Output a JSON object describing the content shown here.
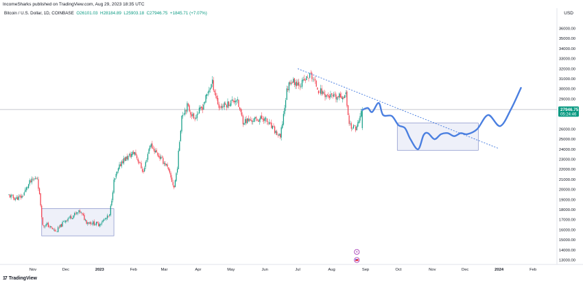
{
  "header": {
    "publisher_line": "IncomeSharks published on TradingView.com, Aug 29, 2023 18:35 UTC"
  },
  "legend": {
    "symbol": "Bitcoin / U.S. Dollar, 1D, COINBASE",
    "open": "O26101.03",
    "high": "H28184.89",
    "low": "L25903.18",
    "close": "C27946.75",
    "change": "+1845.71 (+7.07%)"
  },
  "currency": "USD",
  "price_badge": {
    "price": "27946.75",
    "countdown": "05:24:46",
    "color": "#089981"
  },
  "brand": {
    "name": "TradingView",
    "logo_text": "17"
  },
  "colors": {
    "up": "#089981",
    "down": "#f23645",
    "projection": "#4a7fe0",
    "trendline": "#4a7fe0",
    "box_fill": "#e8ebf7",
    "box_stroke": "#7f8bc7"
  },
  "icons": [
    "lightning-event-icon",
    "us-flag-event-icon"
  ],
  "chart_data": {
    "type": "candlestick",
    "y_axis": {
      "min": 13000,
      "max": 36000,
      "step": 1000,
      "tick_labels": [
        "36000.00",
        "35000.00",
        "34000.00",
        "33000.00",
        "32000.00",
        "31000.00",
        "30000.00",
        "29000.00",
        "28000.00",
        "27000.00",
        "26000.00",
        "25000.00",
        "24000.00",
        "23000.00",
        "22000.00",
        "21000.00",
        "20000.00",
        "19000.00",
        "18000.00",
        "17000.00",
        "16000.00",
        "15000.00",
        "14000.00",
        "13000.00"
      ],
      "hidden_ticks": [
        "27000.00"
      ]
    },
    "x_axis": {
      "tick_labels": [
        {
          "label": "Nov",
          "date": "2022-11-01"
        },
        {
          "label": "Dec",
          "date": "2022-12-01"
        },
        {
          "label": "2023",
          "date": "2023-01-01"
        },
        {
          "label": "Feb",
          "date": "2023-02-01"
        },
        {
          "label": "Mar",
          "date": "2023-03-01"
        },
        {
          "label": "Apr",
          "date": "2023-04-01"
        },
        {
          "label": "May",
          "date": "2023-05-01"
        },
        {
          "label": "Jun",
          "date": "2023-06-01"
        },
        {
          "label": "Jul",
          "date": "2023-07-01"
        },
        {
          "label": "Aug",
          "date": "2023-08-01"
        },
        {
          "label": "Sep",
          "date": "2023-09-01"
        },
        {
          "label": "Oct",
          "date": "2023-10-01"
        },
        {
          "label": "Nov",
          "date": "2023-11-01"
        },
        {
          "label": "Dec",
          "date": "2023-12-01"
        },
        {
          "label": "2024",
          "date": "2024-01-01"
        },
        {
          "label": "Feb",
          "date": "2024-02-01"
        }
      ]
    },
    "current_price_line": 27946.75,
    "path_keypoints": [
      [
        "2022-10-10",
        19400
      ],
      [
        "2022-10-16",
        19100
      ],
      [
        "2022-10-22",
        19300
      ],
      [
        "2022-10-29",
        20700
      ],
      [
        "2022-11-05",
        21200
      ],
      [
        "2022-11-08",
        18500
      ],
      [
        "2022-11-10",
        16400
      ],
      [
        "2022-11-14",
        16500
      ],
      [
        "2022-11-22",
        15800
      ],
      [
        "2022-12-01",
        17000
      ],
      [
        "2022-12-14",
        17800
      ],
      [
        "2022-12-20",
        16800
      ],
      [
        "2022-12-31",
        16550
      ],
      [
        "2023-01-10",
        17400
      ],
      [
        "2023-01-14",
        20800
      ],
      [
        "2023-01-21",
        22800
      ],
      [
        "2023-02-02",
        23700
      ],
      [
        "2023-02-10",
        21700
      ],
      [
        "2023-02-16",
        24500
      ],
      [
        "2023-02-25",
        23200
      ],
      [
        "2023-03-03",
        22400
      ],
      [
        "2023-03-10",
        20200
      ],
      [
        "2023-03-13",
        22300
      ],
      [
        "2023-03-17",
        27400
      ],
      [
        "2023-03-22",
        28300
      ],
      [
        "2023-03-28",
        27100
      ],
      [
        "2023-04-05",
        28200
      ],
      [
        "2023-04-11",
        30000
      ],
      [
        "2023-04-14",
        30600
      ],
      [
        "2023-04-20",
        28200
      ],
      [
        "2023-04-26",
        28400
      ],
      [
        "2023-05-06",
        29000
      ],
      [
        "2023-05-12",
        26800
      ],
      [
        "2023-05-22",
        26900
      ],
      [
        "2023-05-31",
        27100
      ],
      [
        "2023-06-10",
        25800
      ],
      [
        "2023-06-15",
        25100
      ],
      [
        "2023-06-21",
        29800
      ],
      [
        "2023-06-24",
        30800
      ],
      [
        "2023-07-04",
        30500
      ],
      [
        "2023-07-13",
        31400
      ],
      [
        "2023-07-20",
        29900
      ],
      [
        "2023-07-28",
        29300
      ],
      [
        "2023-08-05",
        29100
      ],
      [
        "2023-08-14",
        29400
      ],
      [
        "2023-08-17",
        26600
      ],
      [
        "2023-08-20",
        26100
      ],
      [
        "2023-08-24",
        26200
      ],
      [
        "2023-08-29",
        27950
      ]
    ],
    "ohlc": [
      {
        "date": "2023-08-29",
        "open": 26101.03,
        "high": 28184.89,
        "low": 25903.18,
        "close": 27946.75
      }
    ],
    "projection_path": [
      [
        "2023-08-29",
        27900
      ],
      [
        "2023-09-03",
        28100
      ],
      [
        "2023-09-07",
        27700
      ],
      [
        "2023-09-13",
        28600
      ],
      [
        "2023-09-17",
        27400
      ],
      [
        "2023-09-25",
        27300
      ],
      [
        "2023-10-01",
        26400
      ],
      [
        "2023-10-07",
        26100
      ],
      [
        "2023-10-12",
        25000
      ],
      [
        "2023-10-19",
        24000
      ],
      [
        "2023-10-24",
        25400
      ],
      [
        "2023-10-28",
        25600
      ],
      [
        "2023-11-03",
        25000
      ],
      [
        "2023-11-09",
        25500
      ],
      [
        "2023-11-15",
        25600
      ],
      [
        "2023-11-21",
        25300
      ],
      [
        "2023-11-27",
        25600
      ],
      [
        "2023-12-03",
        25500
      ],
      [
        "2023-12-12",
        26000
      ],
      [
        "2023-12-22",
        27400
      ],
      [
        "2024-01-02",
        26300
      ],
      [
        "2024-01-12",
        28000
      ],
      [
        "2024-01-21",
        30100
      ]
    ],
    "trendline": {
      "start": [
        "2023-07-01",
        32000
      ],
      "end": [
        "2023-12-31",
        24100
      ]
    },
    "boxes": [
      {
        "start": "2022-11-09",
        "end": "2023-01-14",
        "low": 15400,
        "high": 18100
      },
      {
        "start": "2023-09-30",
        "end": "2023-12-13",
        "low": 23900,
        "high": 26600
      }
    ],
    "event_markers": [
      {
        "date": "2023-08-24",
        "price": 13800,
        "icon": "lightning-event-icon"
      },
      {
        "date": "2023-08-24",
        "price": 13000,
        "icon": "us-flag-event-icon"
      }
    ],
    "grid": true
  }
}
